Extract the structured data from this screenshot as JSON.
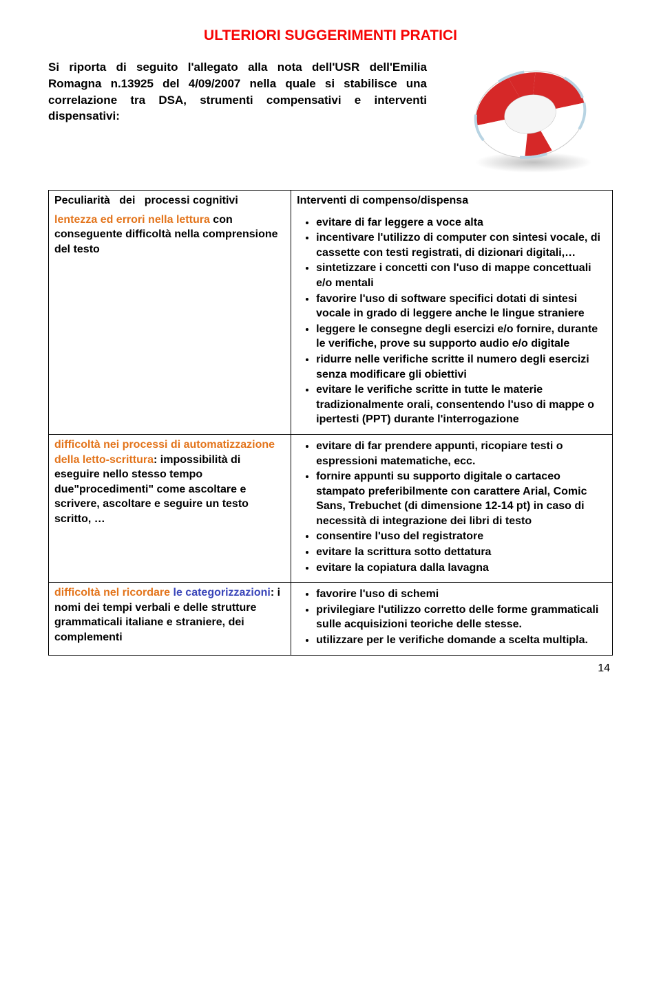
{
  "colors": {
    "title": "#f60404",
    "highlight_word": "#e3741b",
    "highlight_phrase": "#3945b9",
    "text": "#000000",
    "lifebuoy_red": "#d62828",
    "lifebuoy_white": "#ffffff"
  },
  "title": "ULTERIORI SUGGERIMENTI PRATICI",
  "intro": "Si riporta di seguito l'allegato alla nota dell'USR dell'Emilia Romagna n.13925 del 4/09/2007 nella quale si stabilisce una correlazione tra DSA, strumenti compensativi e interventi dispensativi:",
  "table": {
    "left_header": "Peculiarità dei processi cognitivi",
    "right_header": "Interventi di compenso/dispensa",
    "rows": [
      {
        "left": {
          "highlight": "lentezza ed errori nella lettura",
          "rest": " con conseguente difficoltà nella comprensione del testo"
        },
        "right": [
          "evitare di far leggere a voce alta",
          "incentivare l'utilizzo di computer con sintesi vocale, di cassette con testi registrati, di dizionari digitali,…",
          "sintetizzare i concetti con l'uso di mappe concettuali e/o mentali",
          "favorire l'uso di software specifici dotati di sintesi vocale in grado di leggere anche le lingue straniere",
          "leggere le consegne degli esercizi e/o fornire, durante le verifiche, prove su supporto audio e/o digitale",
          "ridurre nelle verifiche scritte il numero degli esercizi senza modificare gli obiettivi",
          "evitare le verifiche scritte in tutte le materie tradizionalmente orali, consentendo l'uso di mappe o ipertesti (PPT) durante l'interrogazione"
        ]
      },
      {
        "left": {
          "highlight": "difficoltà nei processi di automatizzazione della letto-scrittura",
          "rest": ": impossibilità di eseguire nello stesso tempo due\"procedimenti\" come ascoltare e scrivere, ascoltare e seguire un testo scritto, …"
        },
        "right": [
          "evitare di far prendere appunti, ricopiare testi o espressioni matematiche, ecc.",
          "fornire appunti su supporto digitale o cartaceo stampato preferibilmente con carattere Arial, Comic Sans, Trebuchet (di dimensione 12-14 pt) in caso di necessità di integrazione dei libri di testo",
          "consentire l'uso del registratore",
          "evitare la scrittura sotto dettatura",
          "evitare la copiatura dalla lavagna"
        ]
      },
      {
        "left": {
          "highlight_orange": "difficoltà nel ricordare",
          "highlight_blue": "le categorizzazioni",
          "rest": ": i nomi dei tempi verbali e delle strutture grammaticali italiane e straniere, dei complementi"
        },
        "right": [
          "favorire l'uso di schemi",
          "privilegiare l'utilizzo corretto delle forme grammaticali sulle acquisizioni teoriche delle stesse.",
          "utilizzare per le verifiche domande a scelta multipla."
        ]
      }
    ]
  },
  "page_number": "14"
}
